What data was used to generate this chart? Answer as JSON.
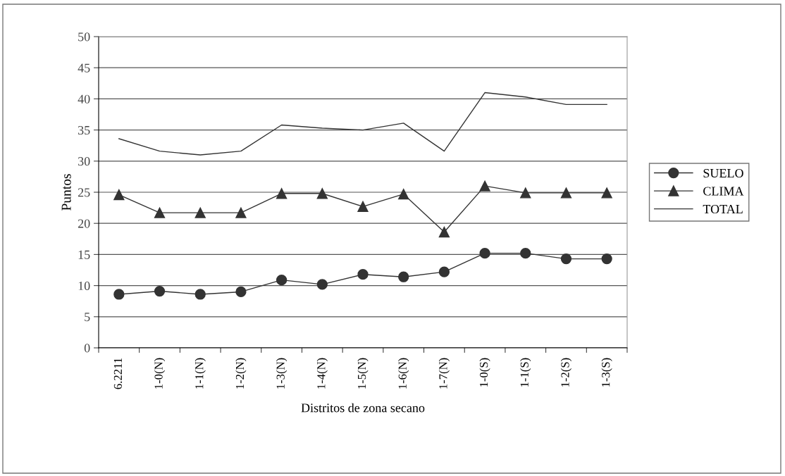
{
  "chart_data": {
    "type": "line",
    "xlabel": "Distritos de zona secano",
    "ylabel": "Puntos",
    "categories": [
      "6.2211",
      "1-0(N)",
      "1-1(N)",
      "1-2(N)",
      "1-3(N)",
      "1-4(N)",
      "1-5(N)",
      "1-6(N)",
      "1-7(N)",
      "1-0(S)",
      "1-1(S)",
      "1-2(S)",
      "1-3(S)"
    ],
    "series": [
      {
        "name": "SUELO",
        "color": "#333333",
        "marker": "circle",
        "values": [
          8.6,
          9.1,
          8.6,
          9.0,
          10.9,
          10.2,
          11.8,
          11.4,
          12.2,
          15.2,
          15.2,
          14.3,
          14.3
        ]
      },
      {
        "name": "CLIMA",
        "color": "#333333",
        "marker": "triangle",
        "values": [
          24.6,
          21.7,
          21.7,
          21.7,
          24.8,
          24.8,
          22.7,
          24.7,
          18.6,
          26.0,
          24.9,
          24.9,
          24.9
        ]
      },
      {
        "name": "TOTAL",
        "color": "#333333",
        "marker": "none",
        "values": [
          33.6,
          31.6,
          31.0,
          31.6,
          35.8,
          35.3,
          35.0,
          36.1,
          31.6,
          41.0,
          40.3,
          39.1,
          39.1
        ]
      }
    ],
    "ylim": [
      0,
      50
    ],
    "yticks": [
      0,
      5,
      10,
      15,
      20,
      25,
      30,
      35,
      40,
      45,
      50
    ],
    "grid": "y",
    "legend": "right",
    "line_style": "solid"
  }
}
